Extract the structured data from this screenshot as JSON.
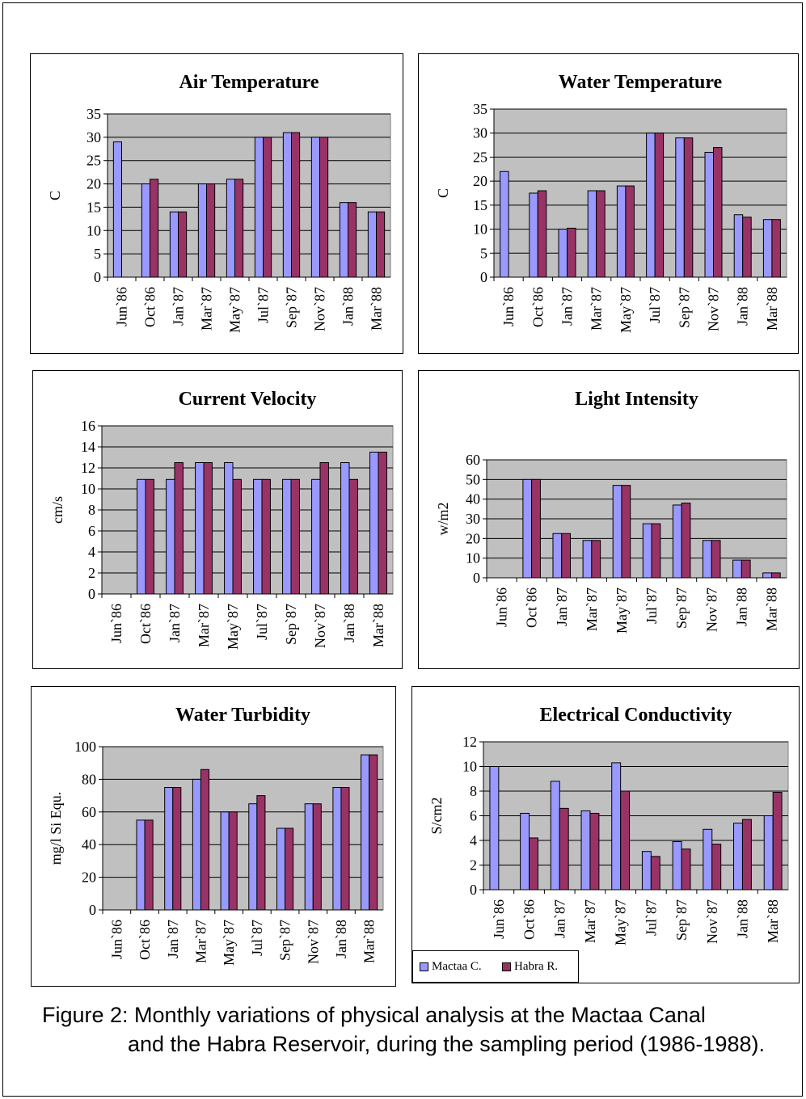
{
  "colors": {
    "mactaa": "#9999ff",
    "habra": "#993366",
    "plot_bg": "#c0c0c0"
  },
  "legend": {
    "mactaa": "Mactaa C.",
    "habra": "Habra R."
  },
  "caption": {
    "line1": "Figure 2: Monthly variations of physical analysis at the Mactaa Canal",
    "rest": "and the Habra Reservoir, during the sampling period (1986-1988)."
  },
  "chart_data": [
    {
      "type": "bar",
      "title": "Air Temperature",
      "ylabel": "C",
      "ylim": [
        0,
        35
      ],
      "ystep": 5,
      "categories": [
        "Jun`86",
        "Oct`86",
        "Jan`87",
        "Mar`87",
        "May`87",
        "Jul`87",
        "Sep`87",
        "Nov`87",
        "Jan`88",
        "Mar`88"
      ],
      "series": [
        {
          "name": "Mactaa C.",
          "values": [
            29,
            20,
            14,
            20,
            21,
            30,
            31,
            30,
            16,
            14
          ]
        },
        {
          "name": "Habra R.",
          "values": [
            null,
            21,
            14,
            20,
            21,
            30,
            31,
            30,
            16,
            14
          ]
        }
      ]
    },
    {
      "type": "bar",
      "title": "Water Temperature",
      "ylabel": "C",
      "ylim": [
        0,
        35
      ],
      "ystep": 5,
      "categories": [
        "Jun`86",
        "Oct`86",
        "Jan`87",
        "Mar`87",
        "May`87",
        "Jul`87",
        "Sep`87",
        "Nov`87",
        "Jan`88",
        "Mar`88"
      ],
      "series": [
        {
          "name": "Mactaa C.",
          "values": [
            22,
            17.5,
            10,
            18,
            19,
            30,
            29,
            26,
            13,
            12
          ]
        },
        {
          "name": "Habra R.",
          "values": [
            null,
            18,
            10.2,
            18,
            19,
            30,
            29,
            27,
            12.5,
            12
          ]
        }
      ]
    },
    {
      "type": "bar",
      "title": "Current Velocity",
      "ylabel": "cm/s",
      "ylim": [
        0,
        16
      ],
      "ystep": 2,
      "categories": [
        "Jun`86",
        "Oct`86",
        "Jan`87",
        "Mar`87",
        "May`87",
        "Jul`87",
        "Sep`87",
        "Nov`87",
        "Jan`88",
        "Mar`88"
      ],
      "series": [
        {
          "name": "Mactaa C.",
          "values": [
            null,
            10.9,
            10.9,
            12.5,
            12.5,
            10.9,
            10.9,
            10.9,
            12.5,
            13.5
          ]
        },
        {
          "name": "Habra R.",
          "values": [
            null,
            10.9,
            12.5,
            12.5,
            10.9,
            10.9,
            10.9,
            12.5,
            10.9,
            13.5
          ]
        }
      ]
    },
    {
      "type": "bar",
      "title": "Light Intensity",
      "ylabel": "w/m2",
      "ylim": [
        0,
        60
      ],
      "ystep": 10,
      "categories": [
        "Jun`86",
        "Oct`86",
        "Jan`87",
        "Mar`87",
        "May`87",
        "Jul`87",
        "Sep`87",
        "Nov`87",
        "Jan`88",
        "Mar`88"
      ],
      "series": [
        {
          "name": "Mactaa C.",
          "values": [
            null,
            50,
            22.5,
            19,
            47,
            27.5,
            37,
            19,
            9,
            2.5
          ]
        },
        {
          "name": "Habra R.",
          "values": [
            null,
            50,
            22.5,
            19,
            47,
            27.5,
            38,
            19,
            9,
            2.5
          ]
        }
      ]
    },
    {
      "type": "bar",
      "title": "Water Turbidity",
      "ylabel": "mg/l Si Equ.",
      "ylim": [
        0,
        100
      ],
      "ystep": 20,
      "categories": [
        "Jun`86",
        "Oct`86",
        "Jan`87",
        "Mar`87",
        "May`87",
        "Jul`87",
        "Sep`87",
        "Nov`87",
        "Jan`88",
        "Mar`88"
      ],
      "series": [
        {
          "name": "Mactaa C.",
          "values": [
            null,
            55,
            75,
            80,
            60,
            65,
            50,
            65,
            75,
            95
          ]
        },
        {
          "name": "Habra R.",
          "values": [
            null,
            55,
            75,
            86,
            60,
            70,
            50,
            65,
            75,
            95
          ]
        }
      ]
    },
    {
      "type": "bar",
      "title": "Electrical Conductivity",
      "ylabel": "S/cm2",
      "ylim": [
        0,
        12
      ],
      "ystep": 2,
      "categories": [
        "Jun`86",
        "Oct`86",
        "Jan`87",
        "Mar`87",
        "May`87",
        "Jul`87",
        "Sep`87",
        "Nov`87",
        "Jan`88",
        "Mar`88"
      ],
      "series": [
        {
          "name": "Mactaa C.",
          "values": [
            10,
            6.2,
            8.8,
            6.4,
            10.3,
            3.1,
            3.9,
            4.9,
            5.4,
            6
          ]
        },
        {
          "name": "Habra R.",
          "values": [
            null,
            4.2,
            6.6,
            6.2,
            8,
            2.7,
            3.3,
            3.7,
            5.7,
            7.9
          ]
        }
      ]
    }
  ]
}
